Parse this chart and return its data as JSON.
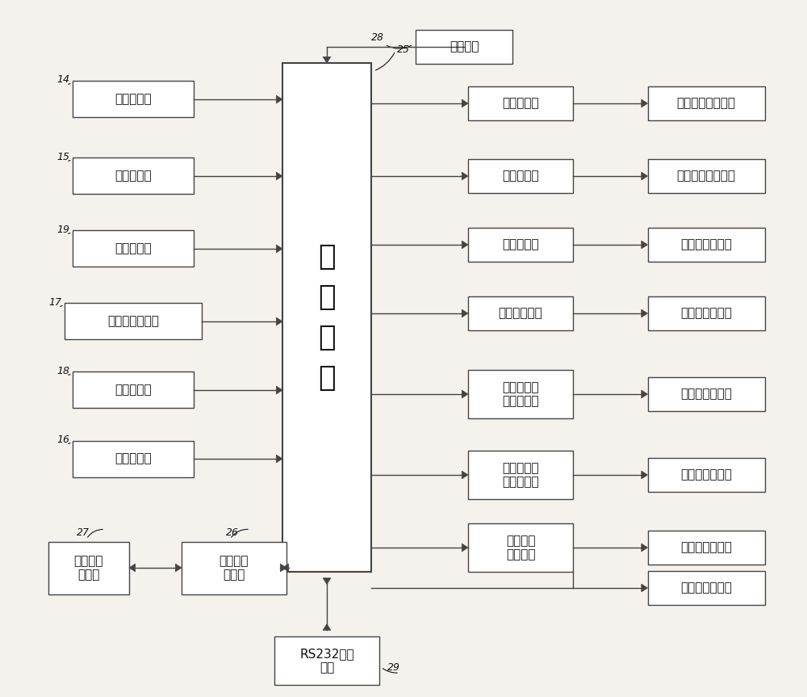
{
  "bg_color": "#f5f2ee",
  "box_color": "#ffffff",
  "box_edge": "#444444",
  "text_color": "#111111",
  "arrow_color": "#444444",
  "sensor_boxes": [
    {
      "label": "温度传感器",
      "num": "14"
    },
    {
      "label": "湿度传感器",
      "num": "15"
    },
    {
      "label": "风速传感器",
      "num": "19"
    },
    {
      "label": "气体成分传感器",
      "num": "17"
    },
    {
      "label": "光照传感器",
      "num": "18"
    },
    {
      "label": "气压传感器",
      "num": "16"
    }
  ],
  "mcu_label": "微\n控\n制\n器",
  "mcu_num": "25",
  "clock_label": "时钟电路",
  "clock_num": "28",
  "rs232_label": "RS232通讯\n模块",
  "rs232_num": "29",
  "lcd_driver_label": "液晶屏驱\n动模块",
  "lcd_driver_num": "26",
  "lcd_screen_label": "液晶显示\n控制屏",
  "lcd_screen_num": "27",
  "output_rows": [
    {
      "mid_label": "固态继电器",
      "out_label": "制冷设备控制电路",
      "tall": false
    },
    {
      "mid_label": "固态继电器",
      "out_label": "电加热管控制电路",
      "tall": false
    },
    {
      "mid_label": "固态继电器",
      "out_label": "加湿器控制电路",
      "tall": false
    },
    {
      "mid_label": "功率控制电路",
      "out_label": "照明灯控制电路",
      "tall": false
    },
    {
      "mid_label": "光隔离可控\n硅驱动电路",
      "out_label": "抽风机驱动电路",
      "tall": true
    },
    {
      "mid_label": "光隔离可控\n硅驱动电路",
      "out_label": "鼓风机驱动电路",
      "tall": true
    },
    {
      "mid_label": "步进电机\n驱动电路",
      "out_label": "进口窗步进电机",
      "tall": true
    },
    {
      "mid_label": null,
      "out_label": "出口窗步进电机",
      "tall": false
    }
  ]
}
